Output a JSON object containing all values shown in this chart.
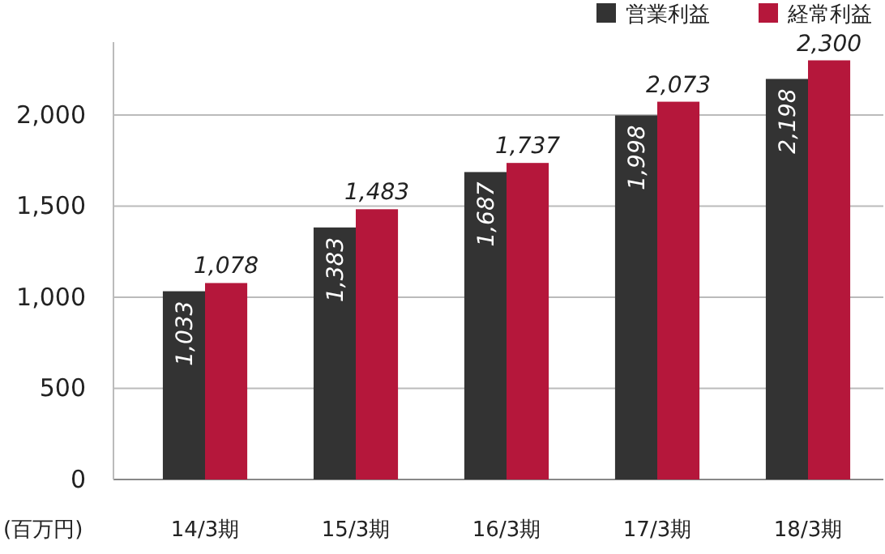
{
  "chart_data": {
    "type": "bar",
    "ylabel": "(百万円)",
    "categories": [
      "14/3期",
      "15/3期",
      "16/3期",
      "17/3期",
      "18/3期"
    ],
    "series": [
      {
        "name": "営業利益",
        "color": "#333333",
        "values": [
          1033,
          1383,
          1687,
          1998,
          2198
        ],
        "value_labels": [
          "1,033",
          "1,383",
          "1,687",
          "1,998",
          "2,198"
        ]
      },
      {
        "name": "経常利益",
        "color": "#b5173b",
        "values": [
          1078,
          1483,
          1737,
          2073,
          2300
        ],
        "value_labels": [
          "1,078",
          "1,483",
          "1,737",
          "2,073",
          "2,300"
        ]
      }
    ],
    "ylim": [
      0,
      2400
    ],
    "yticks": [
      0,
      {
        "value": 500,
        "label": "500"
      },
      {
        "value": 1000,
        "label": "1,000"
      },
      {
        "value": 1500,
        "label": "1,500"
      },
      {
        "value": 2000,
        "label": "2,000"
      }
    ],
    "grid": "y",
    "legend": "top right"
  }
}
